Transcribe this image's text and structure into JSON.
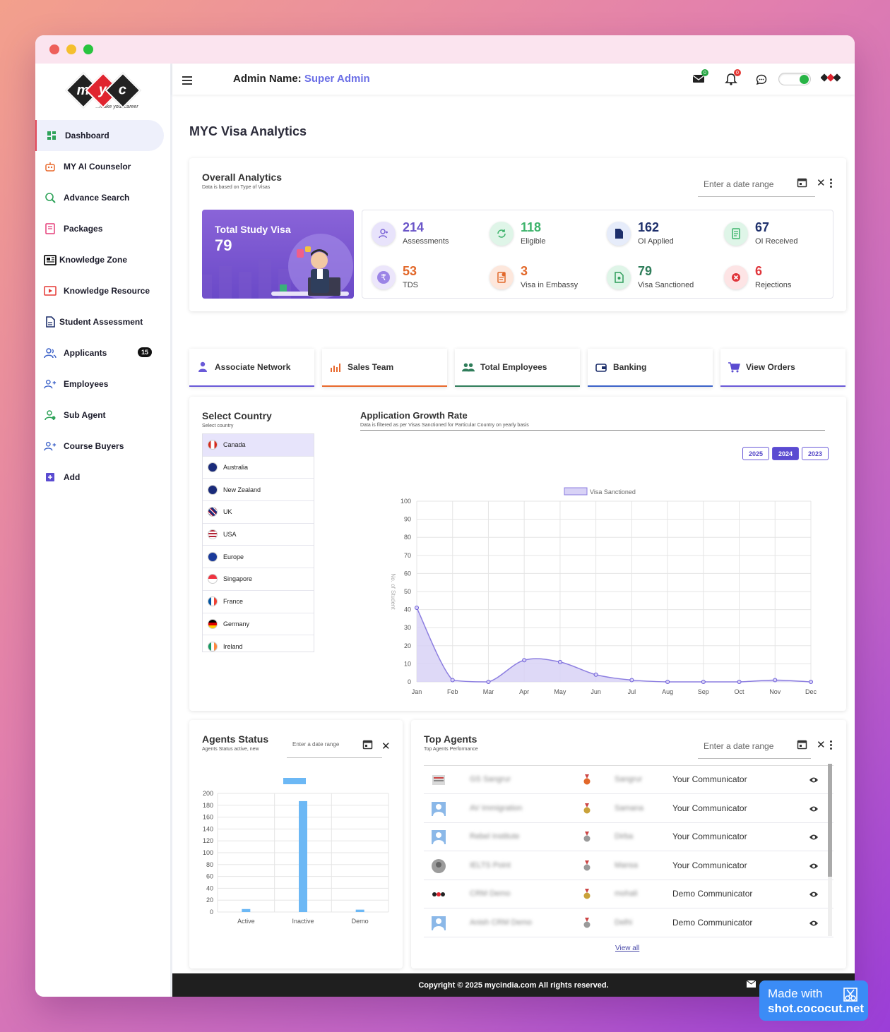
{
  "app": {
    "admin_label": "Admin Name:",
    "admin_name": "Super Admin",
    "mail_count": "0",
    "notif_count": "0"
  },
  "logo": {
    "letters": [
      "m",
      "y",
      "c"
    ],
    "tagline": "...make your career"
  },
  "sidebar": {
    "items": [
      {
        "label": "Dashboard",
        "icon": "dashboard-icon"
      },
      {
        "label": "MY AI Counselor",
        "icon": "robot-icon"
      },
      {
        "label": "Advance Search",
        "icon": "search-icon"
      },
      {
        "label": "Packages",
        "icon": "package-icon"
      },
      {
        "label": "Knowledge Zone",
        "icon": "newspaper-icon"
      },
      {
        "label": "Knowledge Resource",
        "icon": "video-icon"
      },
      {
        "label": "Student Assessment",
        "icon": "document-icon"
      },
      {
        "label": "Applicants",
        "icon": "users-icon",
        "badge": "15"
      },
      {
        "label": "Employees",
        "icon": "user-add-icon"
      },
      {
        "label": "Sub Agent",
        "icon": "agent-icon"
      },
      {
        "label": "Course Buyers",
        "icon": "user-add-icon"
      },
      {
        "label": "Add",
        "icon": "plus-icon"
      }
    ]
  },
  "page": {
    "title": "MYC Visa Analytics"
  },
  "overall": {
    "title": "Overall Analytics",
    "subtitle": "Data is based on Type of Visas",
    "date_placeholder": "Enter a date range",
    "total_label": "Total Study Visa",
    "total_value": "79",
    "stats": [
      {
        "value": "214",
        "label": "Assessments",
        "color": "#6a55c8"
      },
      {
        "value": "118",
        "label": "Eligible",
        "color": "#3db36b"
      },
      {
        "value": "162",
        "label": "OI Applied",
        "color": "#1d2f6b"
      },
      {
        "value": "67",
        "label": "OI Received",
        "color": "#1d2f6b"
      },
      {
        "value": "53",
        "label": "TDS",
        "color": "#e2682a"
      },
      {
        "value": "3",
        "label": "Visa in Embassy",
        "color": "#e2682a"
      },
      {
        "value": "79",
        "label": "Visa Sanctioned",
        "color": "#2f7d5a"
      },
      {
        "value": "6",
        "label": "Rejections",
        "color": "#e0353b"
      }
    ]
  },
  "quick_links": [
    {
      "label": "Associate Network",
      "border": "#6a5ad8"
    },
    {
      "label": "Sales Team",
      "border": "#e8682c"
    },
    {
      "label": "Total Employees",
      "border": "#2f7d5a"
    },
    {
      "label": "Banking",
      "border": "#3c62c8"
    },
    {
      "label": "View Orders",
      "border": "#6a5ad8"
    }
  ],
  "country": {
    "title": "Select Country",
    "subtitle": "Select country",
    "items": [
      "Canada",
      "Australia",
      "New Zealand",
      "UK",
      "USA",
      "Europe",
      "Singapore",
      "France",
      "Germany",
      "Ireland"
    ],
    "selected": "Canada"
  },
  "growth": {
    "title": "Application Growth Rate",
    "subtitle": "Data is filtered as per Visas Sanctioned for Particular Country on yearly basis",
    "years": [
      "2025",
      "2024",
      "2023"
    ],
    "active_year": "2024"
  },
  "agents_status": {
    "title": "Agents Status",
    "subtitle": "Agents Status active, new",
    "date_placeholder": "Enter a date range"
  },
  "top_agents": {
    "title": "Top Agents",
    "subtitle": "Top Agents Performance",
    "date_placeholder": "Enter a date range",
    "view_all": "View all",
    "rows": [
      {
        "name": "GS Sangrur",
        "city": "Sangrur",
        "communicator": "Your Communicator",
        "medal": "#e2682a"
      },
      {
        "name": "AV Immigration",
        "city": "Samana",
        "communicator": "Your Communicator",
        "medal": "#c9a23a"
      },
      {
        "name": "Rebel Institute",
        "city": "Dirba",
        "communicator": "Your Communicator",
        "medal": "#9a9a9a"
      },
      {
        "name": "IELTS Point",
        "city": "Mansa",
        "communicator": "Your Communicator",
        "medal": "#9a9a9a"
      },
      {
        "name": "CRM Demo",
        "city": "mohali",
        "communicator": "Demo Communicator",
        "medal": "#c9a23a"
      },
      {
        "name": "Anish CRM Demo",
        "city": "Delhi",
        "communicator": "Demo Communicator",
        "medal": "#9a9a9a"
      }
    ]
  },
  "footer": {
    "copyright": "Copyright © 2025 mycindia.com All rights reserved."
  },
  "watermark": {
    "line1": "Made with",
    "line2": "shot.cococut.net"
  },
  "chart_data": [
    {
      "type": "area",
      "title": "",
      "ylabel": "No. of Student",
      "xlabel": "",
      "legend": "top-center",
      "categories": [
        "Jan",
        "Feb",
        "Mar",
        "Apr",
        "May",
        "Jun",
        "Jul",
        "Aug",
        "Sep",
        "Oct",
        "Nov",
        "Dec"
      ],
      "series": [
        {
          "name": "Visa Sanctioned",
          "values": [
            41,
            1,
            0,
            12,
            11,
            4,
            1,
            0,
            0,
            0,
            1,
            0
          ],
          "color": "#8c7ee0"
        }
      ],
      "ylim": [
        0,
        100
      ],
      "yticks": [
        0,
        10,
        20,
        30,
        40,
        50,
        60,
        70,
        80,
        90,
        100
      ],
      "grid": true
    },
    {
      "type": "bar",
      "title": "",
      "categories": [
        "Active",
        "Inactive",
        "Demo"
      ],
      "values": [
        5,
        187,
        4
      ],
      "ylim": [
        0,
        200
      ],
      "yticks": [
        0,
        20,
        40,
        60,
        80,
        100,
        120,
        140,
        160,
        180,
        200
      ],
      "color": "#6cb8f5",
      "grid": true
    }
  ]
}
